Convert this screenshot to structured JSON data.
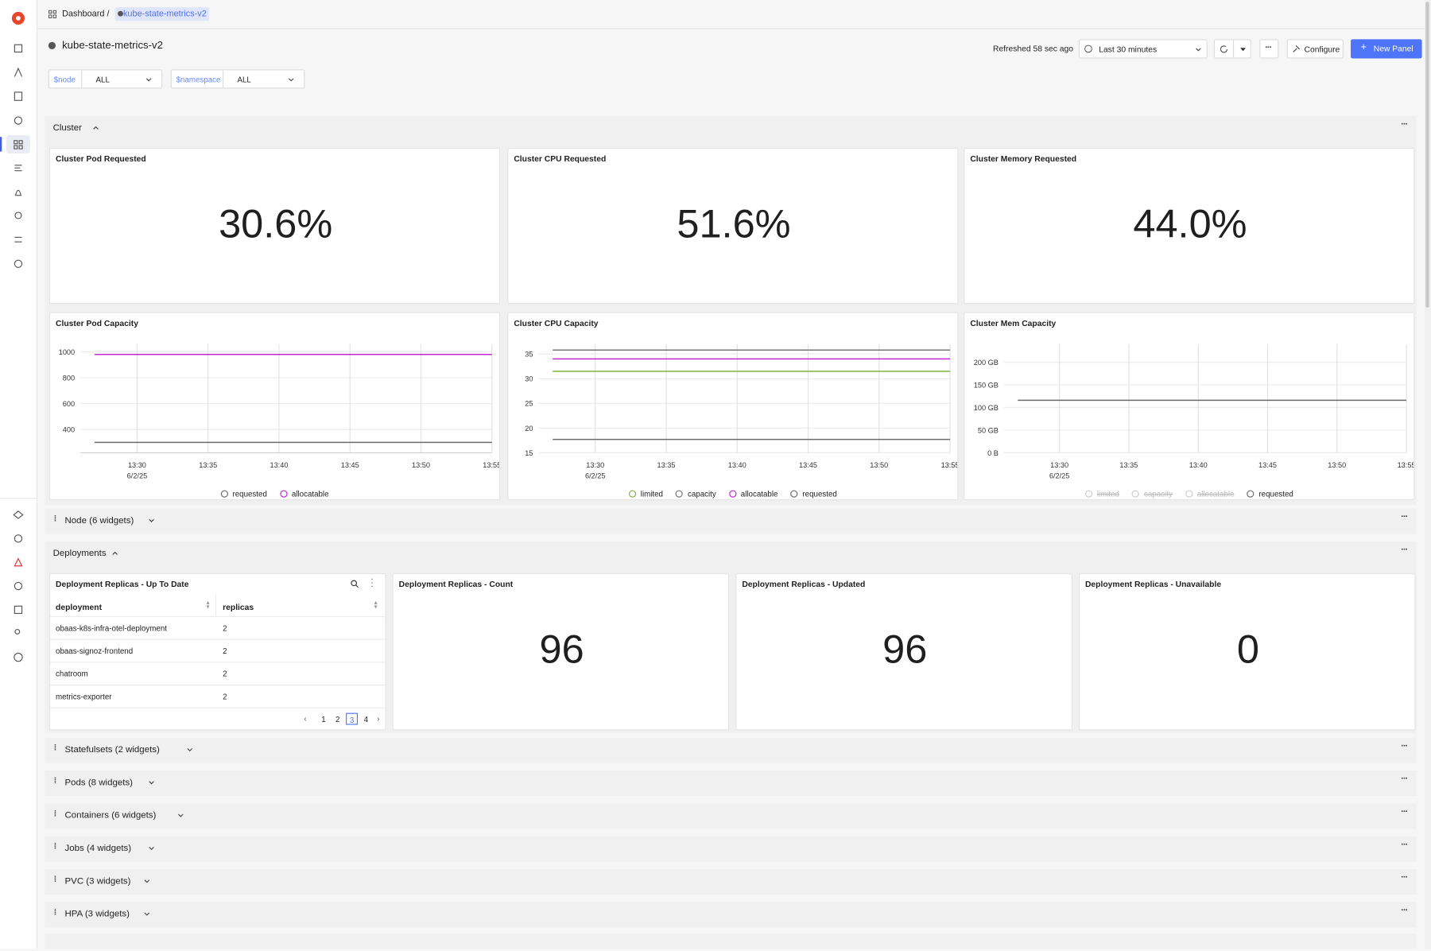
{
  "breadcrumb": {
    "root": "Dashboard /",
    "current": "kube-state-metrics-v2"
  },
  "header": {
    "title": "kube-state-metrics-v2",
    "refreshed": "Refreshed 58 sec ago",
    "time_range": "Last 30 minutes",
    "configure": "Configure",
    "new_panel": "New Panel"
  },
  "variables": [
    {
      "name": "$node",
      "value": "ALL"
    },
    {
      "name": "$namespace",
      "value": "ALL"
    }
  ],
  "cluster": {
    "title": "Cluster",
    "stats": [
      {
        "title": "Cluster Pod Requested",
        "value": "30.6%"
      },
      {
        "title": "Cluster CPU Requested",
        "value": "51.6%"
      },
      {
        "title": "Cluster Memory Requested",
        "value": "44.0%"
      }
    ],
    "charts": [
      {
        "title": "Cluster Pod Capacity",
        "type": "line",
        "x": [
          "13:27",
          "13:55"
        ],
        "xlim": [
          "13:26",
          "13:55"
        ],
        "xticks": [
          "13:30",
          "13:35",
          "13:40",
          "13:45",
          "13:50",
          "13:55"
        ],
        "xtick_date": "6/2/25",
        "ylim": [
          220,
          1060
        ],
        "yticks": [
          400,
          600,
          800,
          1000
        ],
        "grid": true,
        "series": [
          {
            "name": "requested",
            "color": "#6b6b6b",
            "values": [
              300,
              300
            ]
          },
          {
            "name": "allocatable",
            "color": "#c026d3",
            "values": [
              980,
              980
            ]
          }
        ]
      },
      {
        "title": "Cluster CPU Capacity",
        "type": "line",
        "x": [
          "13:27",
          "13:55"
        ],
        "xlim": [
          "13:26",
          "13:55"
        ],
        "xticks": [
          "13:30",
          "13:35",
          "13:40",
          "13:45",
          "13:50",
          "13:55"
        ],
        "xtick_date": "6/2/25",
        "ylim": [
          15,
          37
        ],
        "yticks": [
          15,
          20,
          25,
          30,
          35
        ],
        "grid": true,
        "series": [
          {
            "name": "limited",
            "color": "#7cb342",
            "values": [
              31.5,
              31.5
            ]
          },
          {
            "name": "capacity",
            "color": "#777777",
            "values": [
              35.8,
              35.8
            ]
          },
          {
            "name": "allocatable",
            "color": "#c026d3",
            "values": [
              34,
              34
            ]
          },
          {
            "name": "requested",
            "color": "#6b6b6b",
            "values": [
              17.7,
              17.7
            ]
          }
        ]
      },
      {
        "title": "Cluster Mem Capacity",
        "type": "line",
        "x": [
          "13:27",
          "13:55"
        ],
        "xlim": [
          "13:26",
          "13:55"
        ],
        "xticks": [
          "13:30",
          "13:35",
          "13:40",
          "13:45",
          "13:50",
          "13:55"
        ],
        "xtick_date": "6/2/25",
        "ylim": [
          0,
          240
        ],
        "yticks": [
          {
            "value": 0,
            "label": "0 B"
          },
          {
            "value": 50,
            "label": "50 GB"
          },
          {
            "value": 100,
            "label": "100 GB"
          },
          {
            "value": 150,
            "label": "150 GB"
          },
          {
            "value": 200,
            "label": "200 GB"
          }
        ],
        "grid": true,
        "series": [
          {
            "name": "limited",
            "color": "#7cb342",
            "hidden": true,
            "values": [
              null,
              null
            ]
          },
          {
            "name": "capacity",
            "color": "#777777",
            "hidden": true,
            "values": [
              null,
              null
            ]
          },
          {
            "name": "allocatable",
            "color": "#c026d3",
            "hidden": true,
            "values": [
              null,
              null
            ]
          },
          {
            "name": "requested",
            "color": "#6b6b6b",
            "values": [
              116,
              116
            ]
          }
        ]
      }
    ]
  },
  "node_row": "Node (6 widgets)",
  "deployments": {
    "title": "Deployments",
    "table": {
      "title": "Deployment Replicas - Up To Date",
      "columns": [
        "deployment",
        "replicas"
      ],
      "rows": [
        [
          "obaas-k8s-infra-otel-deployment",
          "2"
        ],
        [
          "obaas-signoz-frontend",
          "2"
        ],
        [
          "chatroom",
          "2"
        ],
        [
          "metrics-exporter",
          "2"
        ]
      ],
      "pages": [
        "1",
        "2",
        "3",
        "4"
      ],
      "current_page": 3
    },
    "stats": [
      {
        "title": "Deployment Replicas - Count",
        "value": "96"
      },
      {
        "title": "Deployment Replicas - Updated",
        "value": "96"
      },
      {
        "title": "Deployment Replicas - Unavailable",
        "value": "0"
      }
    ]
  },
  "collapsed_rows": [
    "Statefulsets (2 widgets)",
    "Pods (8 widgets)",
    "Containers (6 widgets)",
    "Jobs (4 widgets)",
    "PVC (3 widgets)",
    "HPA (3 widgets)"
  ]
}
